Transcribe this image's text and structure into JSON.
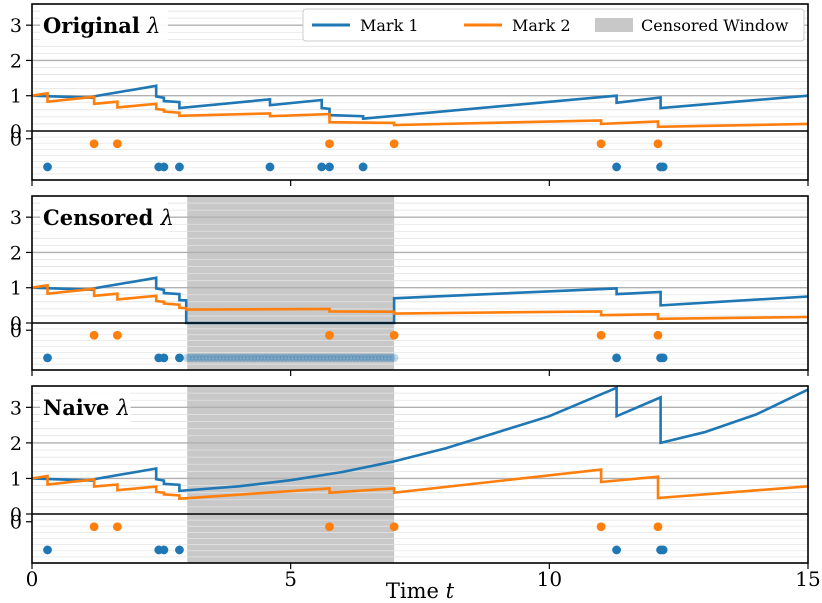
{
  "chart_data": {
    "type": "line",
    "xlabel": "Time t",
    "xlim": [
      0,
      15
    ],
    "ylim": [
      0,
      3.6
    ],
    "xticks": [
      "0",
      "5",
      "10",
      "15"
    ],
    "yticks": [
      "0",
      "1",
      "2",
      "3"
    ],
    "legend": {
      "placement": "top-right",
      "entries": [
        {
          "label": "Mark 1",
          "kind": "line",
          "color": "#1f77b4"
        },
        {
          "label": "Mark 2",
          "kind": "line",
          "color": "#ff7f0e"
        },
        {
          "label": "Censored Window",
          "kind": "patch",
          "color": "#c8c8c8"
        }
      ]
    },
    "colors": {
      "mark1": "#1f77b4",
      "mark2": "#ff7f0e",
      "censor": "#c8c8c8"
    },
    "panels": [
      {
        "title": "Original",
        "title_symbol": "λ",
        "censor": null,
        "series": [
          {
            "name": "Mark 1",
            "points": [
              [
                0,
                1.0
              ],
              [
                1.2,
                0.94
              ],
              [
                1.2,
                0.98
              ],
              [
                2.4,
                1.28
              ],
              [
                2.4,
                0.98
              ],
              [
                2.55,
                0.94
              ],
              [
                2.55,
                0.85
              ],
              [
                2.85,
                0.82
              ],
              [
                2.85,
                0.65
              ],
              [
                4.6,
                0.9
              ],
              [
                4.6,
                0.73
              ],
              [
                5.6,
                0.88
              ],
              [
                5.6,
                0.65
              ],
              [
                5.75,
                0.63
              ],
              [
                5.75,
                0.45
              ],
              [
                6.4,
                0.42
              ],
              [
                6.4,
                0.35
              ],
              [
                11.3,
                1.0
              ],
              [
                11.3,
                0.8
              ],
              [
                12.15,
                0.95
              ],
              [
                12.15,
                0.65
              ],
              [
                15,
                1.0
              ]
            ]
          },
          {
            "name": "Mark 2",
            "points": [
              [
                0,
                1.0
              ],
              [
                0.3,
                1.07
              ],
              [
                0.3,
                0.83
              ],
              [
                1.2,
                0.97
              ],
              [
                1.2,
                0.77
              ],
              [
                1.65,
                0.83
              ],
              [
                1.65,
                0.67
              ],
              [
                2.4,
                0.77
              ],
              [
                2.4,
                0.62
              ],
              [
                2.55,
                0.6
              ],
              [
                2.55,
                0.55
              ],
              [
                2.85,
                0.52
              ],
              [
                2.85,
                0.43
              ],
              [
                4.6,
                0.5
              ],
              [
                4.6,
                0.42
              ],
              [
                5.75,
                0.48
              ],
              [
                5.75,
                0.25
              ],
              [
                7.0,
                0.23
              ],
              [
                7.0,
                0.17
              ],
              [
                11.0,
                0.3
              ],
              [
                11.0,
                0.2
              ],
              [
                12.1,
                0.27
              ],
              [
                12.1,
                0.12
              ],
              [
                15,
                0.2
              ]
            ]
          }
        ],
        "events": [
          {
            "mark": 2,
            "times": [
              1.2,
              1.65,
              5.75,
              7.0,
              11.0,
              12.1
            ]
          },
          {
            "mark": 1,
            "times": [
              0.3,
              2.45,
              2.55,
              2.85,
              4.6,
              5.6,
              5.75,
              6.4,
              11.3,
              12.15,
              12.2
            ]
          }
        ]
      },
      {
        "title": "Censored",
        "title_symbol": "λ",
        "censor": [
          3.0,
          7.0
        ],
        "series": [
          {
            "name": "Mark 1",
            "points": [
              [
                0,
                1.0
              ],
              [
                1.2,
                0.94
              ],
              [
                1.2,
                0.98
              ],
              [
                2.4,
                1.28
              ],
              [
                2.4,
                0.98
              ],
              [
                2.55,
                0.94
              ],
              [
                2.55,
                0.85
              ],
              [
                2.85,
                0.82
              ],
              [
                2.85,
                0.65
              ],
              [
                2.98,
                0.64
              ],
              [
                2.98,
                0.0
              ],
              [
                7.0,
                0.0
              ],
              [
                7.0,
                0.7
              ],
              [
                11.3,
                0.98
              ],
              [
                11.3,
                0.82
              ],
              [
                12.15,
                0.88
              ],
              [
                12.15,
                0.5
              ],
              [
                15,
                0.75
              ]
            ]
          },
          {
            "name": "Mark 2",
            "points": [
              [
                0,
                1.0
              ],
              [
                0.3,
                1.07
              ],
              [
                0.3,
                0.83
              ],
              [
                1.2,
                0.97
              ],
              [
                1.2,
                0.77
              ],
              [
                1.65,
                0.83
              ],
              [
                1.65,
                0.67
              ],
              [
                2.4,
                0.77
              ],
              [
                2.4,
                0.62
              ],
              [
                2.55,
                0.6
              ],
              [
                2.55,
                0.55
              ],
              [
                2.85,
                0.52
              ],
              [
                2.85,
                0.43
              ],
              [
                2.98,
                0.42
              ],
              [
                2.98,
                0.38
              ],
              [
                5.75,
                0.4
              ],
              [
                5.75,
                0.33
              ],
              [
                7.0,
                0.32
              ],
              [
                7.0,
                0.27
              ],
              [
                11.0,
                0.33
              ],
              [
                11.0,
                0.22
              ],
              [
                12.1,
                0.25
              ],
              [
                12.1,
                0.12
              ],
              [
                15,
                0.17
              ]
            ]
          }
        ],
        "events": [
          {
            "mark": 2,
            "times": [
              1.2,
              1.65,
              5.75,
              7.0,
              11.0,
              12.1
            ]
          },
          {
            "mark": 1,
            "times": [
              0.3,
              2.45,
              2.55,
              2.85,
              11.3,
              12.15,
              12.2
            ]
          }
        ]
      },
      {
        "title": "Naive",
        "title_symbol": "λ",
        "censor": [
          3.0,
          7.0
        ],
        "series": [
          {
            "name": "Mark 1",
            "points": [
              [
                0,
                1.0
              ],
              [
                1.2,
                0.94
              ],
              [
                1.2,
                0.98
              ],
              [
                2.4,
                1.28
              ],
              [
                2.4,
                0.98
              ],
              [
                2.55,
                0.94
              ],
              [
                2.55,
                0.85
              ],
              [
                2.85,
                0.82
              ],
              [
                2.85,
                0.65
              ],
              [
                4,
                0.78
              ],
              [
                5,
                0.95
              ],
              [
                6,
                1.18
              ],
              [
                7,
                1.48
              ],
              [
                8,
                1.85
              ],
              [
                9,
                2.3
              ],
              [
                10,
                2.75
              ],
              [
                11.3,
                3.55
              ],
              [
                11.3,
                2.75
              ],
              [
                12.15,
                3.28
              ],
              [
                12.15,
                2.0
              ],
              [
                13,
                2.3
              ],
              [
                14,
                2.8
              ],
              [
                15,
                3.5
              ]
            ]
          },
          {
            "name": "Mark 2",
            "points": [
              [
                0,
                1.0
              ],
              [
                0.3,
                1.07
              ],
              [
                0.3,
                0.83
              ],
              [
                1.2,
                0.97
              ],
              [
                1.2,
                0.77
              ],
              [
                1.65,
                0.83
              ],
              [
                1.65,
                0.67
              ],
              [
                2.4,
                0.77
              ],
              [
                2.4,
                0.62
              ],
              [
                2.55,
                0.6
              ],
              [
                2.55,
                0.55
              ],
              [
                2.85,
                0.52
              ],
              [
                2.85,
                0.43
              ],
              [
                5.75,
                0.72
              ],
              [
                5.75,
                0.6
              ],
              [
                7.0,
                0.72
              ],
              [
                7.0,
                0.6
              ],
              [
                11.0,
                1.25
              ],
              [
                11.0,
                0.9
              ],
              [
                12.1,
                1.05
              ],
              [
                12.1,
                0.45
              ],
              [
                15,
                0.78
              ]
            ]
          }
        ],
        "events": [
          {
            "mark": 2,
            "times": [
              1.2,
              1.65,
              5.75,
              7.0,
              11.0,
              12.1
            ]
          },
          {
            "mark": 1,
            "times": [
              0.3,
              2.45,
              2.55,
              2.85,
              11.3,
              12.15,
              12.2
            ]
          }
        ]
      }
    ]
  }
}
